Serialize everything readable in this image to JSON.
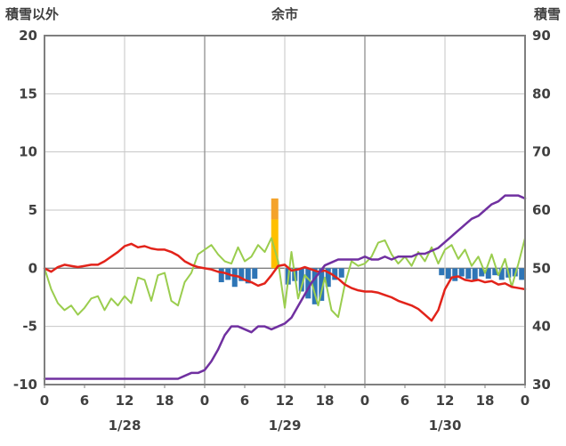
{
  "header": {
    "left_axis_title": "積雪以外",
    "title": "余市",
    "right_axis_title": "積雪"
  },
  "chart_data": {
    "type": "combo-line-bar",
    "title": "余市",
    "x_hours_total": 72,
    "left_axis": {
      "label": "積雪以外",
      "min": -10,
      "max": 20,
      "ticks": [
        20,
        15,
        10,
        5,
        0,
        -5,
        -10
      ]
    },
    "right_axis": {
      "label": "積雪",
      "min": 30,
      "max": 90,
      "ticks": [
        90,
        80,
        70,
        60,
        50,
        40,
        30
      ]
    },
    "x_ticks": {
      "interval_hours": 6,
      "labels": [
        "0",
        "6",
        "12",
        "18",
        "0",
        "6",
        "12",
        "18",
        "0",
        "6",
        "12",
        "18",
        "0"
      ]
    },
    "day_labels": [
      {
        "label": "1/28",
        "hour": 12
      },
      {
        "label": "1/29",
        "hour": 36
      },
      {
        "label": "1/30",
        "hour": 60
      }
    ],
    "series": {
      "red_line": {
        "name": "red-line",
        "axis": "left",
        "values": [
          0.0,
          -0.3,
          0.1,
          0.3,
          0.2,
          0.1,
          0.2,
          0.3,
          0.3,
          0.6,
          1.0,
          1.4,
          1.9,
          2.1,
          1.8,
          1.9,
          1.7,
          1.6,
          1.6,
          1.4,
          1.1,
          0.6,
          0.3,
          0.1,
          0.0,
          -0.1,
          -0.3,
          -0.4,
          -0.6,
          -0.7,
          -1.0,
          -1.2,
          -1.5,
          -1.3,
          -0.6,
          0.2,
          0.3,
          -0.2,
          -0.1,
          0.1,
          -0.1,
          -0.3,
          -0.2,
          -0.5,
          -0.9,
          -1.4,
          -1.7,
          -1.9,
          -2.0,
          -2.0,
          -2.1,
          -2.3,
          -2.5,
          -2.8,
          -3.0,
          -3.2,
          -3.5,
          -4.0,
          -4.5,
          -3.6,
          -1.8,
          -0.8,
          -0.7,
          -1.0,
          -1.1,
          -1.0,
          -1.2,
          -1.1,
          -1.4,
          -1.3,
          -1.6,
          -1.7,
          -1.8
        ]
      },
      "green_line": {
        "name": "green-line",
        "axis": "left",
        "values": [
          0.0,
          -1.8,
          -3.0,
          -3.6,
          -3.2,
          -4.0,
          -3.4,
          -2.6,
          -2.4,
          -3.6,
          -2.6,
          -3.2,
          -2.4,
          -3.0,
          -0.8,
          -1.0,
          -2.8,
          -0.6,
          -0.4,
          -2.8,
          -3.2,
          -1.2,
          -0.4,
          1.2,
          1.6,
          2.0,
          1.2,
          0.6,
          0.4,
          1.8,
          0.6,
          1.0,
          2.0,
          1.4,
          2.6,
          0.6,
          -3.4,
          1.4,
          -2.6,
          -0.6,
          -1.2,
          -3.2,
          -0.8,
          -3.6,
          -4.2,
          -1.4,
          0.6,
          0.2,
          0.4,
          1.0,
          2.2,
          2.4,
          1.2,
          0.4,
          1.0,
          0.2,
          1.4,
          0.6,
          1.8,
          0.4,
          1.6,
          2.0,
          0.8,
          1.6,
          0.2,
          1.0,
          -0.4,
          1.2,
          -0.6,
          0.8,
          -1.6,
          0.4,
          2.6
        ]
      },
      "purple_line": {
        "name": "purple-line",
        "axis": "right",
        "values": [
          31,
          31,
          31,
          31,
          31,
          31,
          31,
          31,
          31,
          31,
          31,
          31,
          31,
          31,
          31,
          31,
          31,
          31,
          31,
          31,
          31,
          31.5,
          32,
          32,
          32.5,
          34,
          36,
          38.5,
          40,
          40,
          39.5,
          39,
          40,
          40,
          39.5,
          40,
          40.5,
          41.5,
          43.5,
          45.5,
          47.5,
          49,
          50.5,
          51,
          51.5,
          51.5,
          51.5,
          51.5,
          52,
          51.5,
          51.5,
          52,
          51.5,
          52,
          52,
          52,
          52.5,
          52.5,
          53,
          53.5,
          54.5,
          55.5,
          56.5,
          57.5,
          58.5,
          59,
          60,
          61,
          61.5,
          62.5,
          62.5,
          62.5,
          62
        ]
      }
    },
    "bars": {
      "down": [
        {
          "hour": 26,
          "value": -1.2
        },
        {
          "hour": 27,
          "value": -1.0
        },
        {
          "hour": 28,
          "value": -1.6
        },
        {
          "hour": 29,
          "value": -1.1
        },
        {
          "hour": 30,
          "value": -1.3
        },
        {
          "hour": 31,
          "value": -0.9
        },
        {
          "hour": 36,
          "value": -1.4
        },
        {
          "hour": 37,
          "value": -1.1
        },
        {
          "hour": 38,
          "value": -2.0
        },
        {
          "hour": 39,
          "value": -2.6
        },
        {
          "hour": 40,
          "value": -3.1
        },
        {
          "hour": 41,
          "value": -2.8
        },
        {
          "hour": 42,
          "value": -1.6
        },
        {
          "hour": 43,
          "value": -1.0
        },
        {
          "hour": 44,
          "value": -0.8
        },
        {
          "hour": 59,
          "value": -0.6
        },
        {
          "hour": 60,
          "value": -0.9
        },
        {
          "hour": 61,
          "value": -1.1
        },
        {
          "hour": 62,
          "value": -0.7
        },
        {
          "hour": 63,
          "value": -0.9
        },
        {
          "hour": 64,
          "value": -1.0
        },
        {
          "hour": 65,
          "value": -0.7
        },
        {
          "hour": 66,
          "value": -0.9
        },
        {
          "hour": 67,
          "value": -0.6
        },
        {
          "hour": 68,
          "value": -1.0
        },
        {
          "hour": 69,
          "value": -0.8
        },
        {
          "hour": 70,
          "value": -0.7
        },
        {
          "hour": 71,
          "value": -1.0
        }
      ],
      "up": [
        {
          "hour": 34,
          "from": 0,
          "to": 4.2,
          "color": "#ffc000"
        },
        {
          "hour": 34,
          "from": 4.2,
          "to": 6.0,
          "color": "#f4a32c"
        }
      ]
    },
    "colors": {
      "red": "#e2231a",
      "green": "#9acd4e",
      "purple": "#7030a0",
      "snowfall_bar": "#2e75b6",
      "sleet_bar_yellow": "#ffc000",
      "sleet_bar_orange": "#f4a32c",
      "grid": "#c6c6c6",
      "zero_line": "#808080",
      "day_line": "#8f8f8f",
      "border": "#7f7f7f",
      "text": "#404040"
    }
  }
}
